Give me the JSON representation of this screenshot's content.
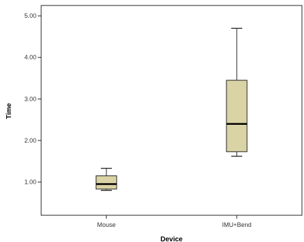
{
  "chart_data": {
    "type": "boxplot",
    "title": "",
    "xlabel": "Device",
    "ylabel": "Time",
    "categories": [
      "Mouse",
      "IMU+Bend"
    ],
    "ylim": [
      0.2,
      5.25
    ],
    "y_ticks": [
      1.0,
      2.0,
      3.0,
      4.0,
      5.0
    ],
    "y_tick_labels": [
      "1.00",
      "2.00",
      "3.00",
      "4.00",
      "5.00"
    ],
    "grid": false,
    "box_color": "#d9d3a5",
    "series": [
      {
        "category": "Mouse",
        "min": 0.8,
        "q1": 0.83,
        "median": 0.95,
        "q3": 1.15,
        "max": 1.33
      },
      {
        "category": "IMU+Bend",
        "min": 1.62,
        "q1": 1.73,
        "median": 2.4,
        "q3": 3.45,
        "max": 4.7
      }
    ]
  }
}
